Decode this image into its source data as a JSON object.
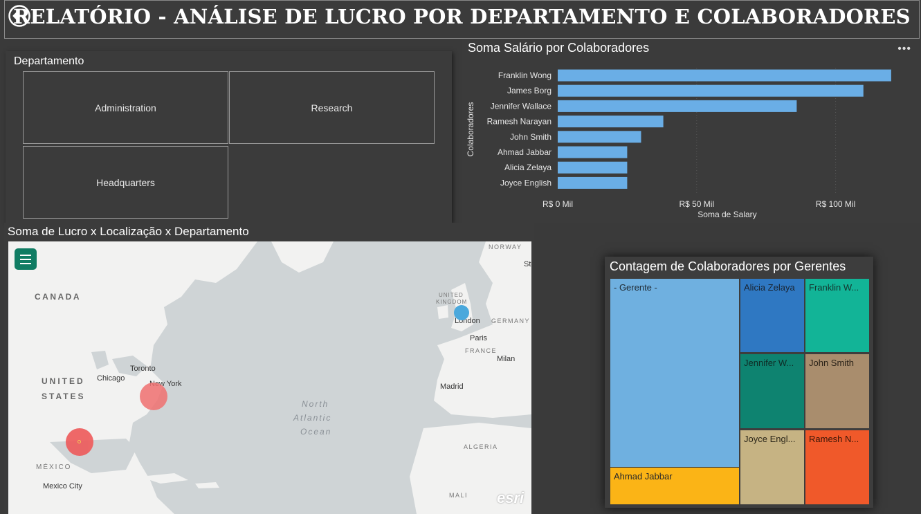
{
  "header": {
    "title": "RELATÓRIO - ANÁLISE DE LUCRO POR DEPARTAMENTO E COLABORADORES"
  },
  "slicer": {
    "title": "Departamento",
    "items": [
      "Administration",
      "Research",
      "Headquarters"
    ]
  },
  "salary_chart": {
    "title": "Soma Salário por Colaboradores",
    "more_label": "•••"
  },
  "map": {
    "title": "Soma de Lucro x Localização x Departamento",
    "labels": {
      "canada": "CANADA",
      "united_states": "UNITED",
      "states": "STATES",
      "chicago": "Chicago",
      "toronto": "Toronto",
      "new_york": "New York",
      "mexico": "MÉXICO",
      "mexico_city": "Mexico City",
      "north": "North",
      "atlantic": "Atlantic",
      "ocean": "Ocean",
      "norway": "NORWAY",
      "united_kingdom_1": "UNITED",
      "united_kingdom_2": "KINGDOM",
      "london": "London",
      "germany": "GERMANY",
      "paris": "Paris",
      "france": "FRANCE",
      "milan": "Milan",
      "madrid": "Madrid",
      "algeria": "ALGERIA",
      "mali": "MALI",
      "sto": "Sto",
      "esri": "esri"
    },
    "bubbles": [
      {
        "location": "New York",
        "color": "#f07070"
      },
      {
        "location": "Houston",
        "color": "#ee5a5a"
      },
      {
        "location": "London",
        "color": "#4aa8dc"
      }
    ]
  },
  "treemap": {
    "title": "Contagem de Colaboradores por Gerentes",
    "cells": [
      {
        "label": "- Gerente -",
        "color": "#6fb0e0",
        "text_color": "#1f2a33"
      },
      {
        "label": "Ahmad Jabbar",
        "color": "#fbb416",
        "text_color": "#2a2a2a"
      },
      {
        "label": "Alicia Zelaya",
        "color": "#2f78c2",
        "text_color": "#1a2533"
      },
      {
        "label": "Franklin W...",
        "color": "#12b497",
        "text_color": "#14352e"
      },
      {
        "label": "Jennifer W...",
        "color": "#0e8370",
        "text_color": "#0f2b25"
      },
      {
        "label": "John Smith",
        "color": "#a98d6d",
        "text_color": "#2a2218"
      },
      {
        "label": "Joyce Engl...",
        "color": "#c6b383",
        "text_color": "#2a2518"
      },
      {
        "label": "Ramesh N...",
        "color": "#f0592a",
        "text_color": "#3a1608"
      }
    ]
  },
  "chart_data": {
    "type": "bar",
    "orientation": "horizontal",
    "title": "Soma Salário por Colaboradores",
    "xlabel": "Soma de Salary",
    "ylabel": "Colaboradores",
    "categories": [
      "Franklin Wong",
      "James Borg",
      "Jennifer Wallace",
      "Ramesh Narayan",
      "John Smith",
      "Ahmad Jabbar",
      "Alicia Zelaya",
      "Joyce English"
    ],
    "values": [
      120000,
      110000,
      86000,
      38000,
      30000,
      25000,
      25000,
      25000
    ],
    "xticks": [
      "R$ 0 Mil",
      "R$ 50 Mil",
      "R$ 100 Mil"
    ],
    "xtick_values": [
      0,
      50000,
      100000
    ],
    "xlim": [
      0,
      125000
    ],
    "bar_color": "#6aaee6",
    "grid": true
  }
}
